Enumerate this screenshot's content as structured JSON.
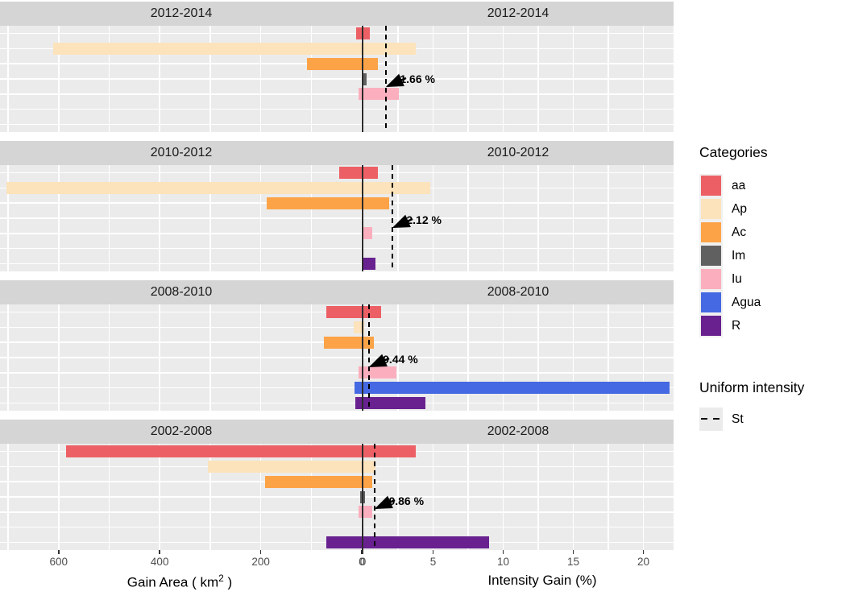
{
  "chart_data": {
    "type": "bar",
    "orientation": "horizontal",
    "facet_rows": [
      "2012-2014",
      "2010-2012",
      "2008-2010",
      "2002-2008"
    ],
    "categories": [
      "aa",
      "Ap",
      "Ac",
      "Im",
      "Iu",
      "Agua",
      "R"
    ],
    "colors": {
      "aa": "#EC6065",
      "Ap": "#FCE3BB",
      "Ac": "#FCA347",
      "Im": "#606060",
      "Iu": "#FBAFBE",
      "Agua": "#4569E2",
      "R": "#68218F"
    },
    "panels": [
      {
        "facet": "2012-2014",
        "gain_area_km2": {
          "aa": 13,
          "Ap": 612,
          "Ac": 110,
          "Im": 2,
          "Iu": 8,
          "Agua": 0,
          "R": 0
        },
        "intensity_gain_pct": {
          "aa": 0.5,
          "Ap": 3.8,
          "Ac": 1.1,
          "Im": 0.3,
          "Iu": 2.6,
          "Agua": 0,
          "R": 0
        },
        "uniform_intensity_pct": 1.66,
        "annotation": "1.66 %"
      },
      {
        "facet": "2010-2012",
        "gain_area_km2": {
          "aa": 47,
          "Ap": 705,
          "Ac": 190,
          "Im": 0,
          "Iu": 2,
          "Agua": 0,
          "R": 2
        },
        "intensity_gain_pct": {
          "aa": 1.1,
          "Ap": 4.8,
          "Ac": 1.9,
          "Im": 0,
          "Iu": 0.7,
          "Agua": 0,
          "R": 0.9
        },
        "uniform_intensity_pct": 2.12,
        "annotation": "2.12 %"
      },
      {
        "facet": "2008-2010",
        "gain_area_km2": {
          "aa": 72,
          "Ap": 18,
          "Ac": 77,
          "Im": 0,
          "Iu": 8,
          "Agua": 16,
          "R": 14
        },
        "intensity_gain_pct": {
          "aa": 1.3,
          "Ap": 0.1,
          "Ac": 0.8,
          "Im": 0,
          "Iu": 2.4,
          "Agua": 21.9,
          "R": 4.5
        },
        "uniform_intensity_pct": 0.44,
        "annotation": "0.44 %"
      },
      {
        "facet": "2002-2008",
        "gain_area_km2": {
          "aa": 587,
          "Ap": 306,
          "Ac": 193,
          "Im": 4,
          "Iu": 8,
          "Agua": 0,
          "R": 72
        },
        "intensity_gain_pct": {
          "aa": 3.8,
          "Ap": 0.9,
          "Ac": 0.7,
          "Im": 0.15,
          "Iu": 0.7,
          "Agua": 0,
          "R": 9.0
        },
        "uniform_intensity_pct": 0.86,
        "annotation": "0.86 %"
      }
    ],
    "left_axis": {
      "title_prefix": "Gain Area ( km",
      "title_sup": "2",
      "title_suffix": " )",
      "ticks": [
        600,
        400,
        200,
        0
      ],
      "range_km2": [
        717,
        0
      ],
      "direction": "reversed"
    },
    "right_axis": {
      "title": "Intensity Gain (%)",
      "ticks": [
        0,
        5,
        10,
        15,
        20
      ],
      "range_pct": [
        0,
        22.2
      ]
    },
    "grid": "white-on-gray",
    "legend_position": "right"
  },
  "legend": {
    "categories_title": "Categories",
    "items": [
      {
        "label": "aa"
      },
      {
        "label": "Ap"
      },
      {
        "label": "Ac"
      },
      {
        "label": "Im"
      },
      {
        "label": "Iu"
      },
      {
        "label": "Agua"
      },
      {
        "label": "R"
      }
    ],
    "uniform_title": "Uniform intensity",
    "uniform_item_label": "St"
  }
}
